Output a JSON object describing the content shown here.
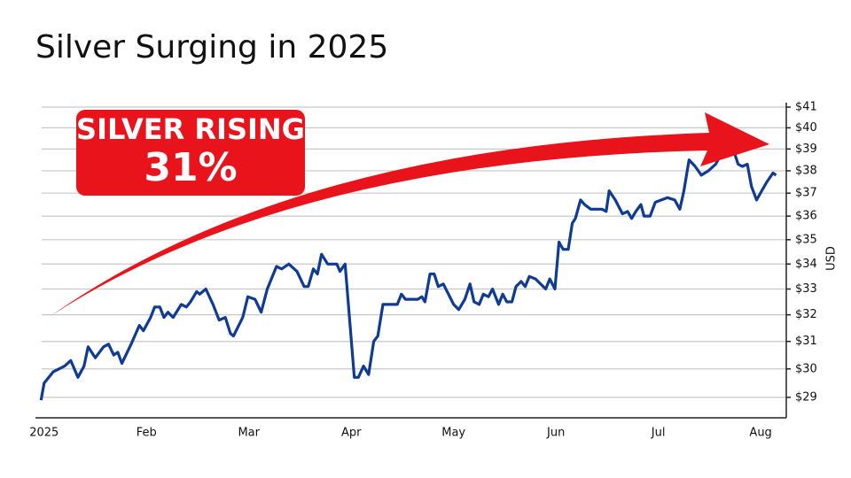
{
  "chart_data": {
    "type": "line",
    "title": "Silver Surging in 2025",
    "ylabel": "USD",
    "annotation": [
      "SILVER RISING",
      "31%"
    ],
    "log_y": true,
    "grid": true,
    "color": "#0f3b94",
    "xlim": [
      -0.05,
      7.25
    ],
    "xticks": [
      {
        "value": 0,
        "label": "2025"
      },
      {
        "value": 1,
        "label": "Feb"
      },
      {
        "value": 2,
        "label": "Mar"
      },
      {
        "value": 3,
        "label": "Apr"
      },
      {
        "value": 4,
        "label": "May"
      },
      {
        "value": 5,
        "label": "Jun"
      },
      {
        "value": 6,
        "label": "Jul"
      },
      {
        "value": 7,
        "label": "Aug"
      }
    ],
    "ylim": [
      28.3,
      41
    ],
    "yticks": [
      {
        "value": 29,
        "label": "$29"
      },
      {
        "value": 30,
        "label": "$30"
      },
      {
        "value": 31,
        "label": "$31"
      },
      {
        "value": 32,
        "label": "$32"
      },
      {
        "value": 33,
        "label": "$33"
      },
      {
        "value": 34,
        "label": "$34"
      },
      {
        "value": 35,
        "label": "$35"
      },
      {
        "value": 36,
        "label": "$36"
      },
      {
        "value": 37,
        "label": "$37"
      },
      {
        "value": 38,
        "label": "$38"
      },
      {
        "value": 39,
        "label": "$39"
      },
      {
        "value": 40,
        "label": "$40"
      },
      {
        "value": 41,
        "label": "$41"
      }
    ],
    "x": [
      -0.03,
      0,
      0.09,
      0.2,
      0.26,
      0.33,
      0.39,
      0.43,
      0.5,
      0.58,
      0.63,
      0.68,
      0.72,
      0.76,
      0.85,
      0.93,
      0.97,
      1.04,
      1.08,
      1.13,
      1.17,
      1.21,
      1.26,
      1.34,
      1.39,
      1.43,
      1.49,
      1.52,
      1.58,
      1.65,
      1.71,
      1.77,
      1.82,
      1.85,
      1.94,
      1.99,
      2.06,
      2.12,
      2.18,
      2.27,
      2.32,
      2.39,
      2.47,
      2.54,
      2.58,
      2.63,
      2.67,
      2.71,
      2.77,
      2.86,
      2.89,
      2.94,
      3.03,
      3.07,
      3.12,
      3.17,
      3.22,
      3.26,
      3.31,
      3.38,
      3.45,
      3.49,
      3.53,
      3.59,
      3.65,
      3.69,
      3.72,
      3.77,
      3.81,
      3.85,
      3.9,
      3.95,
      4.0,
      4.05,
      4.11,
      4.16,
      4.2,
      4.25,
      4.29,
      4.34,
      4.38,
      4.44,
      4.48,
      4.52,
      4.57,
      4.61,
      4.66,
      4.7,
      4.74,
      4.8,
      4.85,
      4.9,
      4.94,
      4.99,
      5.03,
      5.07,
      5.12,
      5.16,
      5.19,
      5.24,
      5.28,
      5.34,
      5.39,
      5.45,
      5.49,
      5.52,
      5.58,
      5.65,
      5.7,
      5.74,
      5.78,
      5.83,
      5.86,
      5.92,
      5.97,
      6.03,
      6.09,
      6.16,
      6.21,
      6.25,
      6.3,
      6.36,
      6.42,
      6.49,
      6.56,
      6.62,
      6.71,
      6.78,
      6.82,
      6.87,
      6.91,
      6.96,
      7.01,
      7.06,
      7.12,
      7.15
    ],
    "values": [
      28.9,
      29.5,
      29.9,
      30.1,
      30.3,
      29.7,
      30.1,
      30.8,
      30.4,
      30.8,
      30.9,
      30.5,
      30.6,
      30.2,
      30.9,
      31.6,
      31.4,
      31.9,
      32.3,
      32.3,
      31.9,
      32.1,
      31.9,
      32.4,
      32.3,
      32.5,
      32.9,
      32.8,
      33.0,
      32.4,
      31.8,
      31.9,
      31.3,
      31.2,
      31.9,
      32.7,
      32.6,
      32.1,
      33.0,
      33.9,
      33.8,
      34.0,
      33.7,
      33.1,
      33.1,
      33.8,
      33.6,
      34.4,
      34.0,
      34.0,
      33.7,
      34.0,
      29.7,
      29.7,
      30.1,
      29.8,
      31.0,
      31.2,
      32.4,
      32.4,
      32.4,
      32.8,
      32.6,
      32.6,
      32.6,
      32.7,
      32.5,
      33.6,
      33.6,
      33.1,
      33.2,
      32.8,
      32.4,
      32.2,
      32.6,
      33.2,
      32.5,
      32.4,
      32.8,
      32.7,
      33.0,
      32.4,
      32.8,
      32.5,
      32.5,
      33.1,
      33.3,
      33.1,
      33.5,
      33.4,
      33.2,
      33.0,
      33.4,
      33.0,
      34.9,
      34.6,
      34.6,
      35.7,
      35.9,
      36.7,
      36.5,
      36.3,
      36.3,
      36.3,
      36.2,
      37.1,
      36.7,
      36.1,
      36.2,
      35.9,
      36.2,
      36.5,
      36.0,
      36.0,
      36.6,
      36.7,
      36.8,
      36.7,
      36.3,
      37.1,
      38.5,
      38.2,
      37.8,
      38.0,
      38.3,
      38.8,
      39.3,
      38.3,
      38.2,
      38.3,
      37.3,
      36.7,
      37.1,
      37.5,
      37.9,
      37.8
    ]
  }
}
